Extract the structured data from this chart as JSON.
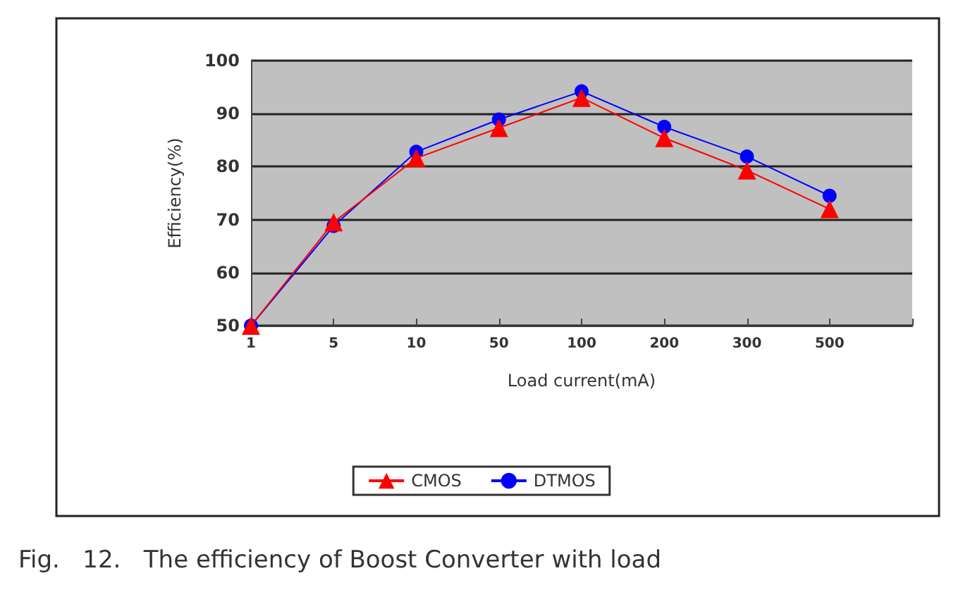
{
  "chart_data": {
    "type": "line",
    "title": "Fig.   12.   The efficiency of Boost Converter with load",
    "xlabel": "Load current(mA)",
    "ylabel": "Efficiency(%)",
    "categories": [
      "1",
      "5",
      "10",
      "50",
      "100",
      "200",
      "300",
      "500",
      null
    ],
    "series": [
      {
        "name": "CMOS",
        "color": "#ff0000",
        "marker": "triangle",
        "values": [
          50,
          69.5,
          81.6,
          87.3,
          93,
          85.4,
          79.3,
          72,
          null
        ]
      },
      {
        "name": "DTMOS",
        "color": "#0000ff",
        "marker": "circle",
        "values": [
          50,
          68.8,
          82.8,
          88.9,
          94.2,
          87.5,
          81.9,
          74.5,
          null
        ]
      }
    ],
    "ylim": [
      50,
      100
    ],
    "yticks": [
      50,
      60,
      70,
      80,
      90,
      100
    ],
    "grid": "y",
    "legend": "bottom"
  }
}
